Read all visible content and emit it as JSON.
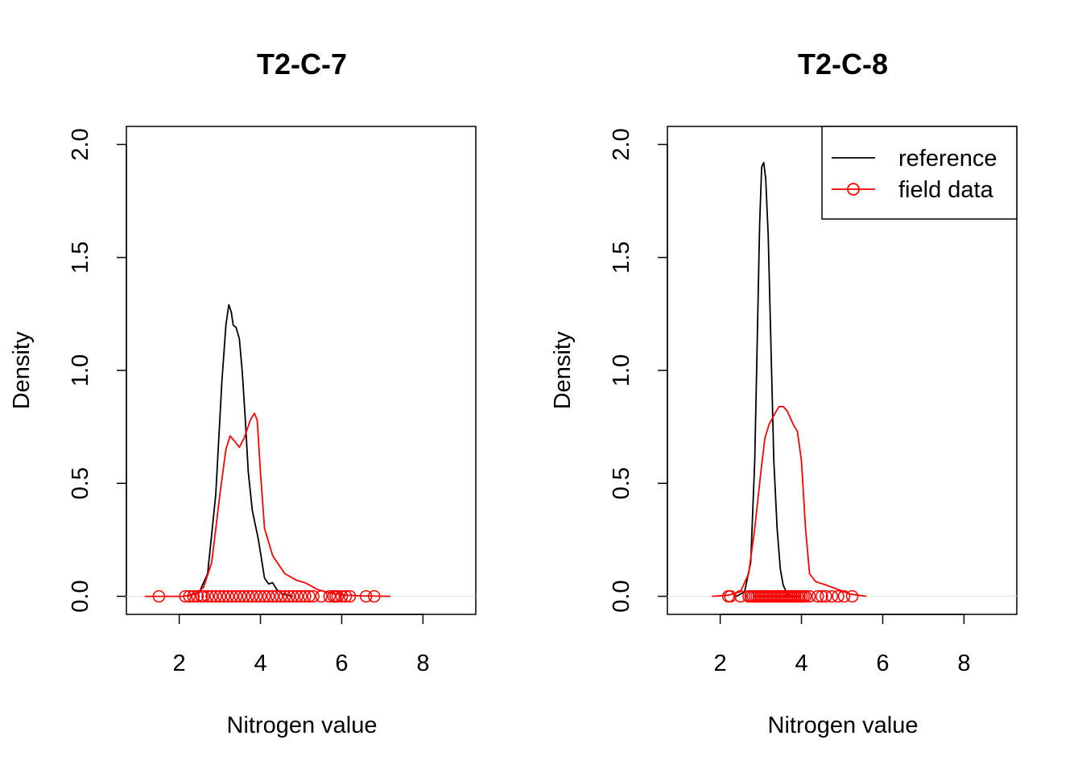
{
  "chart_data": [
    {
      "type": "line",
      "title": "T2-C-7",
      "xlabel": "Nitrogen value",
      "ylabel": "Density",
      "xlim": [
        0.7,
        9.3
      ],
      "ylim": [
        -0.08,
        2.08
      ],
      "xticks": [
        "2",
        "4",
        "6",
        "8"
      ],
      "yticks": [
        "0.0",
        "0.5",
        "1.0",
        "1.5",
        "2.0"
      ],
      "series": [
        {
          "name": "reference",
          "color": "#000000",
          "x": [
            2.2,
            2.5,
            2.7,
            2.9,
            3.05,
            3.15,
            3.22,
            3.28,
            3.33,
            3.4,
            3.48,
            3.55,
            3.62,
            3.7,
            3.8,
            3.95,
            4.1,
            4.2,
            4.3,
            4.4,
            4.55,
            4.8
          ],
          "y": [
            0.0,
            0.02,
            0.1,
            0.45,
            0.95,
            1.2,
            1.29,
            1.26,
            1.2,
            1.19,
            1.14,
            1.0,
            0.8,
            0.55,
            0.38,
            0.25,
            0.08,
            0.055,
            0.06,
            0.03,
            0.01,
            0.0
          ]
        },
        {
          "name": "field data",
          "color": "#ff0000",
          "x": [
            1.15,
            1.6,
            2.1,
            2.4,
            2.6,
            2.8,
            3.0,
            3.15,
            3.25,
            3.35,
            3.48,
            3.6,
            3.75,
            3.85,
            3.92,
            4.0,
            4.1,
            4.3,
            4.6,
            4.9,
            5.1,
            5.4,
            5.7,
            6.1,
            6.5,
            7.2
          ],
          "y": [
            0.0,
            0.0,
            0.0,
            0.01,
            0.04,
            0.15,
            0.45,
            0.65,
            0.71,
            0.69,
            0.66,
            0.7,
            0.78,
            0.81,
            0.78,
            0.55,
            0.3,
            0.18,
            0.1,
            0.07,
            0.06,
            0.03,
            0.015,
            0.005,
            0.002,
            0.0
          ]
        }
      ],
      "rug": [
        1.5,
        2.15,
        2.25,
        2.35,
        2.45,
        2.55,
        2.6,
        2.7,
        2.8,
        2.9,
        3.0,
        3.1,
        3.2,
        3.3,
        3.4,
        3.5,
        3.6,
        3.7,
        3.8,
        3.9,
        4.0,
        4.1,
        4.2,
        4.3,
        4.4,
        4.5,
        4.6,
        4.7,
        4.8,
        4.9,
        5.0,
        5.1,
        5.2,
        5.3,
        5.5,
        5.7,
        5.8,
        5.85,
        5.9,
        6.0,
        6.1,
        6.2,
        6.6,
        6.8
      ]
    },
    {
      "type": "line",
      "title": "T2-C-8",
      "xlabel": "Nitrogen value",
      "ylabel": "Density",
      "xlim": [
        0.7,
        9.3
      ],
      "ylim": [
        -0.08,
        2.08
      ],
      "xticks": [
        "2",
        "4",
        "6",
        "8"
      ],
      "yticks": [
        "0.0",
        "0.5",
        "1.0",
        "1.5",
        "2.0"
      ],
      "legend": {
        "position": "top-right",
        "entries": [
          {
            "label": "reference",
            "color": "#000000",
            "marker": "none"
          },
          {
            "label": "field data",
            "color": "#ff0000",
            "marker": "circle"
          }
        ]
      },
      "series": [
        {
          "name": "reference",
          "color": "#000000",
          "x": [
            2.4,
            2.6,
            2.75,
            2.85,
            2.92,
            2.97,
            3.02,
            3.07,
            3.12,
            3.18,
            3.25,
            3.32,
            3.4,
            3.48,
            3.55,
            3.65,
            3.8
          ],
          "y": [
            0.0,
            0.02,
            0.15,
            0.6,
            1.2,
            1.65,
            1.9,
            1.92,
            1.85,
            1.6,
            1.1,
            0.6,
            0.3,
            0.12,
            0.05,
            0.01,
            0.0
          ]
        },
        {
          "name": "field data",
          "color": "#ff0000",
          "x": [
            1.8,
            2.2,
            2.5,
            2.7,
            2.85,
            3.0,
            3.1,
            3.2,
            3.35,
            3.45,
            3.55,
            3.65,
            3.8,
            3.9,
            4.0,
            4.1,
            4.2,
            4.35,
            4.6,
            4.9,
            5.2,
            5.6
          ],
          "y": [
            0.0,
            0.005,
            0.02,
            0.1,
            0.3,
            0.55,
            0.7,
            0.76,
            0.81,
            0.84,
            0.84,
            0.82,
            0.76,
            0.73,
            0.6,
            0.3,
            0.1,
            0.065,
            0.05,
            0.03,
            0.01,
            0.0
          ]
        }
      ],
      "rug": [
        2.2,
        2.25,
        2.5,
        2.7,
        2.75,
        2.8,
        2.85,
        2.9,
        2.95,
        3.0,
        3.05,
        3.1,
        3.15,
        3.2,
        3.25,
        3.3,
        3.35,
        3.4,
        3.45,
        3.5,
        3.55,
        3.6,
        3.65,
        3.7,
        3.75,
        3.8,
        3.85,
        3.9,
        3.95,
        4.0,
        4.05,
        4.1,
        4.2,
        4.4,
        4.5,
        4.6,
        4.75,
        4.9,
        5.05,
        5.25
      ]
    }
  ]
}
